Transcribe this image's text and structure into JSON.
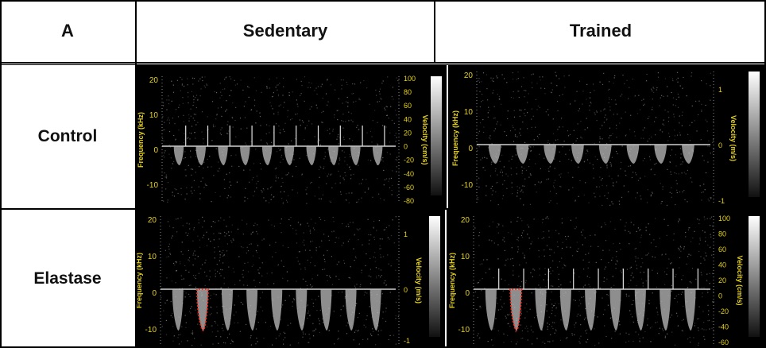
{
  "header": {
    "col0": "A",
    "col1": "Sedentary",
    "col2": "Trained"
  },
  "rows": {
    "control": "Control",
    "elastase": "Elastase"
  },
  "colors": {
    "axis_text": "#e6d21a",
    "trace": "#d8d8d8",
    "marker": "#ff2a1a",
    "background": "#000000"
  },
  "panels": [
    {
      "id": "control-sedentary",
      "freq_label": "Frequency (kHz)",
      "vel_label": "Velocity (cm/s)",
      "freq_ticks": [
        "20",
        "10",
        "0",
        "-10"
      ],
      "vel_ticks": [
        "100",
        "80",
        "60",
        "40",
        "20",
        "0",
        "-20",
        "-40",
        "-60",
        "-80"
      ],
      "beats": 10,
      "spike": true,
      "outline": false
    },
    {
      "id": "control-trained",
      "freq_label": "Frequency (kHz)",
      "vel_label": "Velocity (m/s)",
      "freq_ticks": [
        "20",
        "10",
        "0",
        "-10"
      ],
      "vel_ticks": [
        "1",
        "0",
        "-1"
      ],
      "beats": 8,
      "spike": false,
      "outline": false
    },
    {
      "id": "elastase-sedentary",
      "freq_label": "Frequency (kHz)",
      "vel_label": "Velocity (m/s)",
      "freq_ticks": [
        "20",
        "10",
        "0",
        "-10"
      ],
      "vel_ticks": [
        "1",
        "0",
        "-1"
      ],
      "beats": 9,
      "spike": false,
      "outline": true
    },
    {
      "id": "elastase-trained",
      "freq_label": "Frequency (kHz)",
      "vel_label": "Velocity (cm/s)",
      "freq_ticks": [
        "20",
        "10",
        "0",
        "-10"
      ],
      "vel_ticks": [
        "100",
        "80",
        "60",
        "40",
        "20",
        "0",
        "-20",
        "-40",
        "-60"
      ],
      "beats": 9,
      "spike": true,
      "outline": true
    }
  ]
}
